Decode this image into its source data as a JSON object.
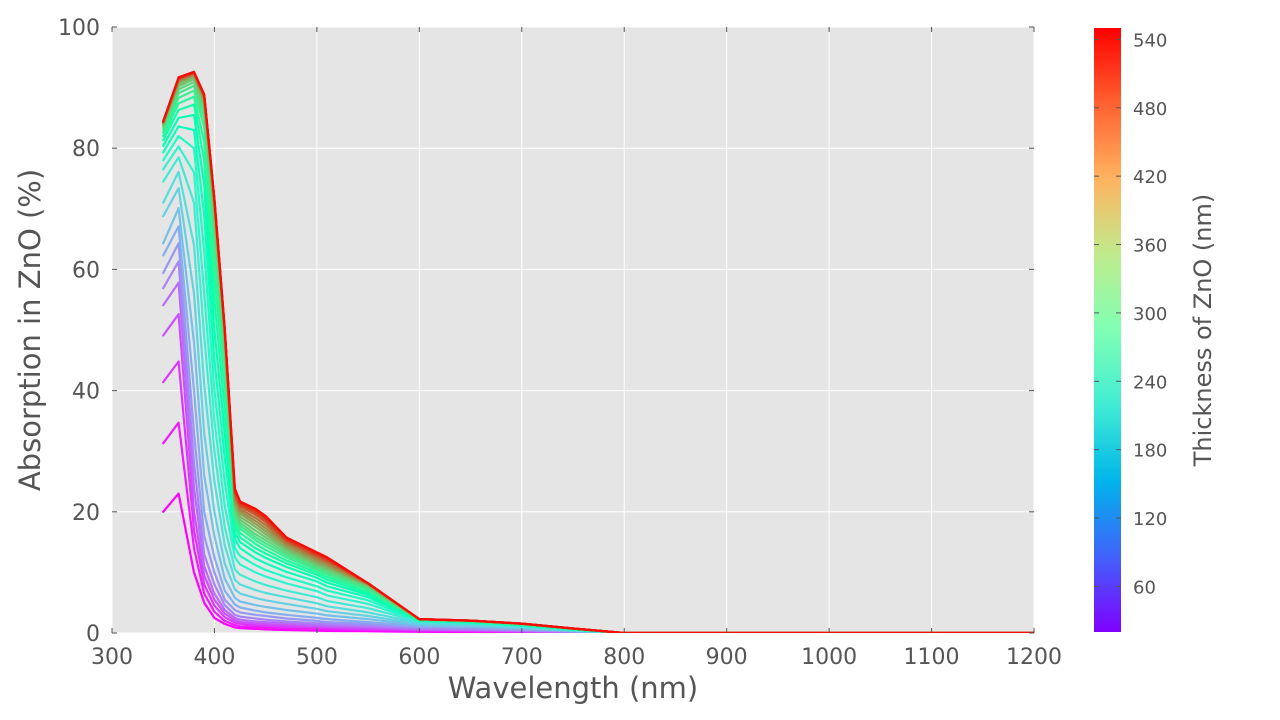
{
  "chart_data": {
    "type": "line",
    "title": "",
    "xlabel": "Wavelength (nm)",
    "ylabel": "Absorption in ZnO (%)",
    "xlim": [
      300,
      1200
    ],
    "ylim": [
      0,
      100
    ],
    "x_ticks": [
      "300",
      "400",
      "500",
      "600",
      "700",
      "800",
      "900",
      "1000",
      "1100",
      "1200"
    ],
    "y_ticks": [
      "0",
      "20",
      "40",
      "60",
      "80",
      "100"
    ],
    "grid": true,
    "colormap": "rainbow",
    "colorbar": {
      "label": "Thickness of ZnO (nm)",
      "range": [
        20,
        550
      ],
      "ticks": [
        "60",
        "120",
        "180",
        "240",
        "300",
        "360",
        "420",
        "480",
        "540"
      ]
    },
    "x": [
      350,
      365,
      380,
      390,
      400,
      410,
      420,
      425,
      440,
      450,
      470,
      500,
      510,
      550,
      600,
      650,
      700,
      750,
      800,
      900,
      1000,
      1100,
      1200
    ],
    "series": [
      {
        "thickness": 20,
        "values": [
          20.0,
          23.0,
          10.0,
          5.0,
          2.5,
          1.5,
          0.9,
          0.8,
          0.7,
          0.6,
          0.5,
          0.4,
          0.35,
          0.3,
          0.2,
          0.15,
          0.1,
          0.05,
          0.0,
          0.0,
          0.0,
          0.0,
          0.0
        ]
      },
      {
        "thickness": 38,
        "values": [
          31.3,
          34.7,
          14.0,
          6.5,
          3.5,
          2.0,
          1.3,
          1.1,
          1.0,
          0.9,
          0.8,
          0.65,
          0.6,
          0.5,
          0.35,
          0.25,
          0.15,
          0.08,
          0.0,
          0.0,
          0.0,
          0.0,
          0.0
        ]
      },
      {
        "thickness": 56,
        "values": [
          41.4,
          44.8,
          17.0,
          8.0,
          4.5,
          2.6,
          1.7,
          1.5,
          1.3,
          1.2,
          1.0,
          0.9,
          0.8,
          0.65,
          0.45,
          0.35,
          0.2,
          0.1,
          0.0,
          0.0,
          0.0,
          0.0,
          0.0
        ]
      },
      {
        "thickness": 74,
        "values": [
          49.1,
          52.6,
          20.0,
          9.5,
          5.5,
          3.2,
          2.1,
          1.8,
          1.6,
          1.5,
          1.3,
          1.1,
          1.0,
          0.8,
          0.55,
          0.45,
          0.3,
          0.15,
          0.0,
          0.0,
          0.0,
          0.0,
          0.0
        ]
      },
      {
        "thickness": 92,
        "values": [
          54.1,
          57.8,
          24.0,
          11.0,
          6.5,
          3.8,
          2.5,
          2.2,
          1.9,
          1.8,
          1.6,
          1.3,
          1.2,
          1.0,
          0.65,
          0.55,
          0.35,
          0.18,
          0.0,
          0.0,
          0.0,
          0.0,
          0.0
        ]
      },
      {
        "thickness": 110,
        "values": [
          56.9,
          61.3,
          28.0,
          13.0,
          8.0,
          4.6,
          3.0,
          2.7,
          2.4,
          2.2,
          1.9,
          1.6,
          1.5,
          1.2,
          0.8,
          0.65,
          0.45,
          0.2,
          0.0,
          0.0,
          0.0,
          0.0,
          0.0
        ]
      },
      {
        "thickness": 128,
        "values": [
          59.4,
          64.3,
          33.0,
          16.0,
          10.0,
          5.5,
          3.8,
          3.4,
          3.0,
          2.8,
          2.4,
          2.0,
          1.8,
          1.5,
          0.95,
          0.8,
          0.55,
          0.25,
          0.0,
          0.0,
          0.0,
          0.0,
          0.0
        ]
      },
      {
        "thickness": 146,
        "values": [
          62.3,
          67.1,
          40.0,
          20.0,
          12.5,
          7.0,
          4.7,
          4.2,
          3.7,
          3.4,
          3.0,
          2.5,
          2.3,
          1.8,
          1.1,
          0.95,
          0.65,
          0.3,
          0.0,
          0.0,
          0.0,
          0.0,
          0.0
        ]
      },
      {
        "thickness": 164,
        "values": [
          64.3,
          70.1,
          48.0,
          26.0,
          16.0,
          9.0,
          5.8,
          5.2,
          4.6,
          4.3,
          3.8,
          3.2,
          2.9,
          2.3,
          1.3,
          1.1,
          0.8,
          0.35,
          0.0,
          0.0,
          0.0,
          0.0,
          0.0
        ]
      },
      {
        "thickness": 182,
        "values": [
          68.8,
          73.4,
          56.0,
          33.0,
          20.0,
          11.5,
          7.2,
          6.5,
          5.8,
          5.4,
          4.8,
          4.0,
          3.6,
          2.8,
          1.5,
          1.3,
          0.9,
          0.4,
          0.0,
          0.0,
          0.0,
          0.0,
          0.0
        ]
      },
      {
        "thickness": 200,
        "values": [
          71.0,
          76.1,
          64.0,
          41.0,
          25.0,
          14.5,
          8.8,
          8.0,
          7.1,
          6.6,
          5.9,
          4.9,
          4.4,
          3.4,
          1.7,
          1.45,
          1.0,
          0.45,
          0.0,
          0.0,
          0.0,
          0.0,
          0.0
        ]
      },
      {
        "thickness": 218,
        "values": [
          74.5,
          78.5,
          71.0,
          49.0,
          30.0,
          17.5,
          10.5,
          9.6,
          8.5,
          7.9,
          7.0,
          5.9,
          5.3,
          4.1,
          1.9,
          1.6,
          1.1,
          0.5,
          0.0,
          0.0,
          0.0,
          0.0,
          0.0
        ]
      },
      {
        "thickness": 236,
        "values": [
          76.5,
          80.3,
          76.0,
          56.0,
          35.0,
          21.0,
          12.5,
          11.3,
          10.0,
          9.3,
          8.2,
          6.9,
          6.2,
          4.8,
          2.0,
          1.7,
          1.2,
          0.55,
          0.0,
          0.0,
          0.0,
          0.0,
          0.0
        ]
      },
      {
        "thickness": 254,
        "values": [
          78.0,
          82.0,
          80.0,
          63.0,
          40.0,
          25.0,
          14.0,
          12.7,
          11.2,
          10.4,
          9.2,
          7.7,
          7.0,
          5.4,
          2.0,
          1.75,
          1.25,
          0.6,
          0.0,
          0.0,
          0.0,
          0.0,
          0.0
        ]
      },
      {
        "thickness": 272,
        "values": [
          79.3,
          83.6,
          83.0,
          69.0,
          45.0,
          29.0,
          15.5,
          14.0,
          12.3,
          11.5,
          10.1,
          8.5,
          7.7,
          5.9,
          2.05,
          1.8,
          1.3,
          0.6,
          0.0,
          0.0,
          0.0,
          0.0,
          0.0
        ]
      },
      {
        "thickness": 290,
        "values": [
          80.4,
          85.0,
          85.5,
          74.0,
          50.0,
          33.0,
          16.5,
          15.0,
          13.3,
          12.4,
          10.9,
          9.1,
          8.3,
          6.3,
          2.1,
          1.85,
          1.35,
          0.65,
          0.0,
          0.0,
          0.0,
          0.0,
          0.0
        ]
      },
      {
        "thickness": 308,
        "values": [
          81.3,
          86.3,
          87.2,
          78.0,
          55.0,
          37.0,
          17.5,
          15.8,
          14.0,
          13.1,
          11.5,
          9.6,
          8.8,
          6.6,
          2.1,
          1.9,
          1.4,
          0.65,
          0.0,
          0.0,
          0.0,
          0.0,
          0.0
        ]
      },
      {
        "thickness": 326,
        "values": [
          82.0,
          87.4,
          88.5,
          81.0,
          59.0,
          41.0,
          18.3,
          16.5,
          14.7,
          13.7,
          12.0,
          10.0,
          9.2,
          6.9,
          2.15,
          1.9,
          1.4,
          0.7,
          0.0,
          0.0,
          0.0,
          0.0,
          0.0
        ]
      },
      {
        "thickness": 344,
        "values": [
          82.6,
          88.3,
          89.5,
          83.5,
          63.0,
          44.0,
          19.0,
          17.2,
          15.3,
          14.3,
          12.5,
          10.4,
          9.6,
          7.2,
          2.15,
          1.95,
          1.45,
          0.7,
          0.0,
          0.0,
          0.0,
          0.0,
          0.0
        ]
      },
      {
        "thickness": 362,
        "values": [
          83.1,
          89.1,
          90.3,
          85.0,
          66.0,
          46.0,
          19.6,
          17.7,
          15.8,
          14.8,
          12.9,
          10.7,
          9.9,
          7.4,
          2.2,
          1.95,
          1.45,
          0.7,
          0.0,
          0.0,
          0.0,
          0.0,
          0.0
        ]
      },
      {
        "thickness": 380,
        "values": [
          83.5,
          89.7,
          90.9,
          86.2,
          68.0,
          47.5,
          20.0,
          18.2,
          16.3,
          15.3,
          13.3,
          11.0,
          10.2,
          7.6,
          2.2,
          2.0,
          1.5,
          0.75,
          0.0,
          0.0,
          0.0,
          0.0,
          0.0
        ]
      },
      {
        "thickness": 398,
        "values": [
          83.8,
          90.2,
          91.4,
          87.0,
          69.0,
          48.5,
          20.5,
          18.7,
          16.9,
          15.8,
          13.7,
          11.3,
          10.5,
          7.8,
          2.25,
          2.0,
          1.5,
          0.75,
          0.0,
          0.0,
          0.0,
          0.0,
          0.0
        ]
      },
      {
        "thickness": 416,
        "values": [
          84.0,
          90.6,
          91.8,
          87.6,
          70.0,
          49.0,
          21.0,
          19.2,
          17.5,
          16.3,
          14.0,
          11.5,
          10.8,
          7.9,
          2.25,
          2.0,
          1.5,
          0.75,
          0.0,
          0.0,
          0.0,
          0.0,
          0.0
        ]
      },
      {
        "thickness": 434,
        "values": [
          84.1,
          90.9,
          92.0,
          88.0,
          70.5,
          49.5,
          21.5,
          19.7,
          18.0,
          16.8,
          14.3,
          11.8,
          11.0,
          8.0,
          2.3,
          2.05,
          1.55,
          0.75,
          0.0,
          0.0,
          0.0,
          0.0,
          0.0
        ]
      },
      {
        "thickness": 452,
        "values": [
          84.2,
          91.1,
          92.2,
          88.3,
          71.0,
          49.8,
          22.0,
          20.1,
          18.5,
          17.3,
          14.6,
          12.1,
          11.3,
          8.1,
          2.3,
          2.05,
          1.55,
          0.75,
          0.0,
          0.0,
          0.0,
          0.0,
          0.0
        ]
      },
      {
        "thickness": 470,
        "values": [
          84.3,
          91.3,
          92.3,
          88.5,
          71.2,
          50.0,
          22.5,
          20.5,
          19.0,
          17.8,
          14.9,
          12.4,
          11.6,
          8.1,
          2.3,
          2.05,
          1.55,
          0.75,
          0.0,
          0.0,
          0.0,
          0.0,
          0.0
        ]
      },
      {
        "thickness": 488,
        "values": [
          84.3,
          91.4,
          92.4,
          88.6,
          71.4,
          50.1,
          23.0,
          20.9,
          19.5,
          18.3,
          15.2,
          12.7,
          11.9,
          8.2,
          2.3,
          2.05,
          1.55,
          0.75,
          0.0,
          0.0,
          0.0,
          0.0,
          0.0
        ]
      },
      {
        "thickness": 506,
        "values": [
          84.4,
          91.5,
          92.5,
          88.7,
          71.5,
          50.2,
          23.3,
          21.2,
          19.9,
          18.7,
          15.4,
          12.9,
          12.1,
          8.2,
          2.3,
          2.05,
          1.55,
          0.75,
          0.0,
          0.0,
          0.0,
          0.0,
          0.0
        ]
      },
      {
        "thickness": 524,
        "values": [
          84.4,
          91.6,
          92.5,
          88.8,
          71.6,
          50.3,
          23.6,
          21.5,
          20.3,
          19.1,
          15.6,
          13.1,
          12.3,
          8.2,
          2.3,
          2.05,
          1.55,
          0.75,
          0.0,
          0.0,
          0.0,
          0.0,
          0.0
        ]
      },
      {
        "thickness": 542,
        "values": [
          84.4,
          91.7,
          92.6,
          88.9,
          71.7,
          50.3,
          23.8,
          21.7,
          20.5,
          19.3,
          15.8,
          13.3,
          12.5,
          8.2,
          2.3,
          2.05,
          1.55,
          0.75,
          0.0,
          0.0,
          0.0,
          0.0,
          0.0
        ]
      }
    ]
  }
}
